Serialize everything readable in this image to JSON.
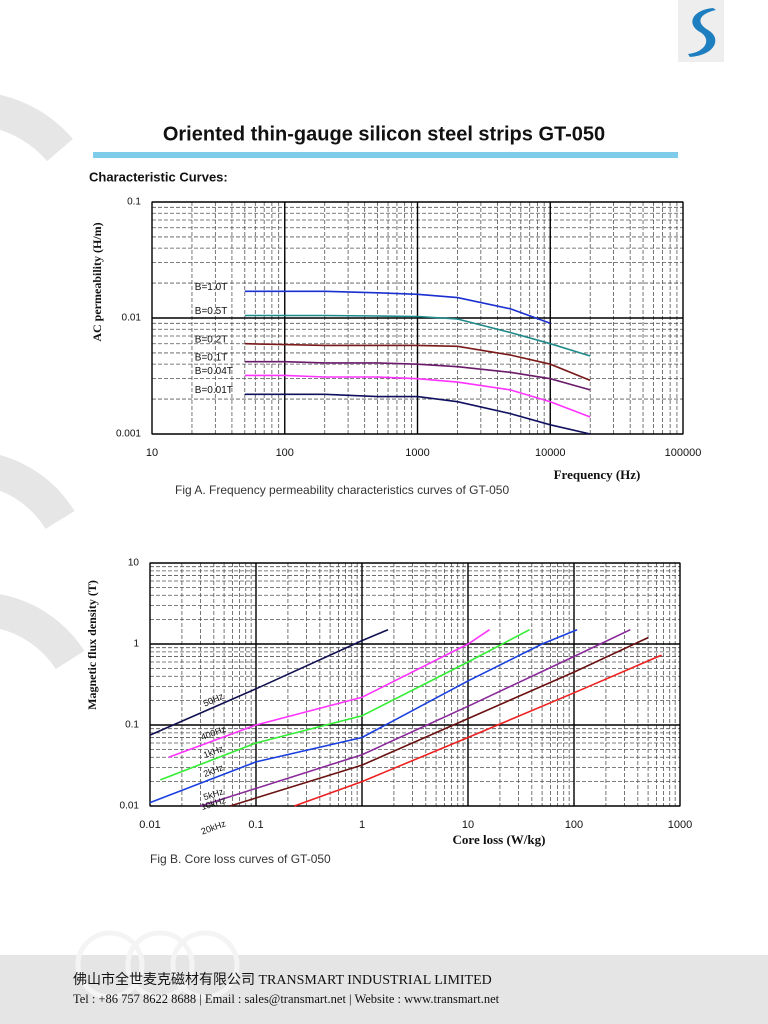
{
  "header": {
    "title": "Oriented thin-gauge silicon steel strips GT-050",
    "subtitle": "Characteristic Curves:"
  },
  "chart_data": [
    {
      "type": "line",
      "x_label": "Frequency (Hz)",
      "y_label": "AC permeability (H/m)",
      "caption": "Fig A. Frequency permeability characteristics curves of GT-050",
      "x_scale": "log",
      "y_scale": "log",
      "grid": true,
      "xlim": [
        10,
        100000
      ],
      "xticks": [
        10,
        100,
        1000,
        10000,
        100000
      ],
      "ylim": [
        0.001,
        0.1
      ],
      "yticks": [
        0.001,
        0.01,
        0.1
      ],
      "x": [
        50,
        100,
        200,
        500,
        1000,
        2000,
        5000,
        10000,
        20000
      ],
      "series": [
        {
          "name": "B=1.0T",
          "color": "#1a2fd0",
          "values": [
            0.017,
            0.017,
            0.017,
            0.0165,
            0.016,
            0.015,
            0.012,
            0.009,
            null
          ]
        },
        {
          "name": "B=0.5T",
          "color": "#1f8a8a",
          "values": [
            0.0105,
            0.0105,
            0.0105,
            0.0104,
            0.0103,
            0.0098,
            0.0075,
            0.006,
            0.0047
          ]
        },
        {
          "name": "B=0.2T",
          "color": "#7a1a1a",
          "values": [
            0.006,
            0.0059,
            0.0058,
            0.0058,
            0.0058,
            0.0057,
            0.0048,
            0.004,
            0.0029
          ]
        },
        {
          "name": "B=0.1T",
          "color": "#6a1a6a",
          "values": [
            0.0042,
            0.0042,
            0.0041,
            0.0041,
            0.004,
            0.0038,
            0.0034,
            0.003,
            0.0024
          ]
        },
        {
          "name": "B=0.04T",
          "color": "#ff33ff",
          "values": [
            0.0032,
            0.0032,
            0.0031,
            0.0031,
            0.003,
            0.0028,
            0.0024,
            0.0019,
            0.0014
          ]
        },
        {
          "name": "B=0.01T",
          "color": "#101060",
          "values": [
            0.0022,
            0.0022,
            0.0022,
            0.0021,
            0.0021,
            0.0019,
            0.0015,
            0.0012,
            0.001
          ]
        }
      ]
    },
    {
      "type": "line",
      "x_label": "Core loss (W/kg)",
      "y_label": "Magnetic flux density (T)",
      "caption": "Fig B. Core loss curves of GT-050",
      "x_scale": "log",
      "y_scale": "log",
      "grid": true,
      "xlim": [
        0.01,
        1000
      ],
      "xticks": [
        0.01,
        0.1,
        1,
        10,
        100,
        1000
      ],
      "ylim": [
        0.01,
        10
      ],
      "yticks": [
        0.01,
        0.1,
        1,
        10
      ],
      "series": [
        {
          "name": "50Hz",
          "color": "#101050",
          "x": [
            0.01,
            0.1,
            1,
            1.76
          ],
          "values": [
            0.075,
            0.28,
            1.1,
            1.5
          ]
        },
        {
          "name": "400Hz",
          "color": "#ff33ff",
          "x": [
            0.015,
            0.1,
            1,
            10,
            16
          ],
          "values": [
            0.04,
            0.1,
            0.22,
            1.0,
            1.5
          ]
        },
        {
          "name": "1kHz",
          "color": "#33ee33",
          "x": [
            0.0125,
            0.1,
            1,
            10,
            38
          ],
          "values": [
            0.021,
            0.06,
            0.13,
            0.6,
            1.5
          ]
        },
        {
          "name": "2kHz",
          "color": "#1a3fe0",
          "x": [
            0.01,
            0.1,
            1,
            10,
            50,
            107
          ],
          "values": [
            0.011,
            0.035,
            0.07,
            0.35,
            1.0,
            1.5
          ]
        },
        {
          "name": "5kHz",
          "color": "#8a2a9a",
          "x": [
            0.03,
            1,
            10,
            100,
            340
          ],
          "values": [
            0.01,
            0.043,
            0.17,
            0.7,
            1.5
          ]
        },
        {
          "name": "10kHz",
          "color": "#6a1010",
          "x": [
            0.057,
            1,
            10,
            100,
            500
          ],
          "values": [
            0.01,
            0.032,
            0.12,
            0.45,
            1.2
          ]
        },
        {
          "name": "20kHz",
          "color": "#ee2020",
          "x": [
            0.23,
            1,
            10,
            100,
            670
          ],
          "values": [
            0.01,
            0.02,
            0.07,
            0.25,
            0.73
          ]
        }
      ]
    }
  ],
  "footer": {
    "company": "佛山市全世麦克磁材有限公司 TRANSMART INDUSTRIAL LIMITED",
    "contact": "Tel : +86 757 8622 8688 | Email : sales@transmart.net | Website : www.transmart.net"
  }
}
